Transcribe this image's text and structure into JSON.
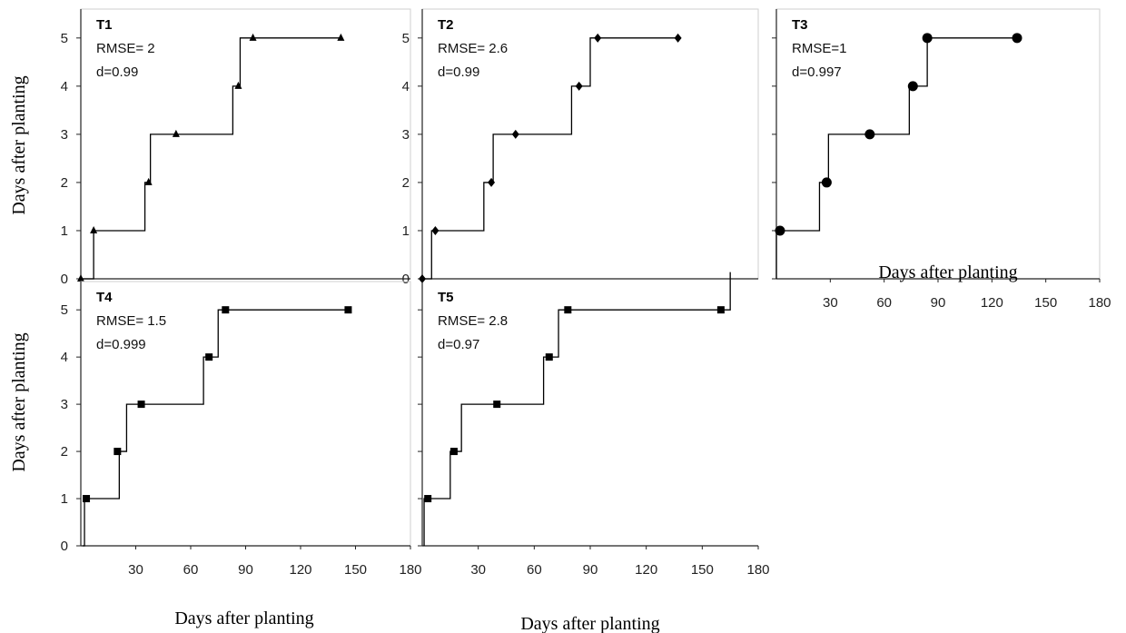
{
  "x_axis_title": "Days after planting",
  "y_axis_title": "Days after planting",
  "colors": {
    "line": "#000000",
    "axis": "#222222",
    "gridline": "#d0d0d0"
  },
  "chart_data": [
    {
      "type": "line",
      "title": "T1",
      "stat1": "RMSE= 2",
      "stat2": "d=0.99",
      "marker": "triangle",
      "x": [
        0,
        7,
        37,
        52,
        86,
        94,
        142
      ],
      "y": [
        0,
        1,
        2,
        3,
        4,
        5,
        5
      ],
      "step_x": [
        0,
        7,
        7,
        35,
        35,
        38,
        38,
        83,
        83,
        87,
        87,
        94,
        94,
        142
      ],
      "step_y": [
        0,
        0,
        1,
        1,
        2,
        2,
        3,
        3,
        4,
        4,
        5,
        5,
        5,
        5
      ],
      "ylim": [
        0,
        5.6
      ],
      "yticks": [
        "0",
        "1",
        "2",
        "3",
        "4",
        "5"
      ]
    },
    {
      "type": "line",
      "title": "T2",
      "stat1": "RMSE= 2.6",
      "stat2": "d=0.99",
      "marker": "diamond",
      "x": [
        0,
        7,
        37,
        50,
        84,
        94,
        137
      ],
      "y": [
        0,
        1,
        2,
        3,
        4,
        5,
        5
      ],
      "step_x": [
        0,
        5,
        5,
        33,
        33,
        38,
        38,
        80,
        80,
        90,
        90,
        137
      ],
      "step_y": [
        0,
        0,
        1,
        1,
        2,
        2,
        3,
        3,
        4,
        4,
        5,
        5
      ],
      "ylim": [
        0,
        5.6
      ],
      "yticks": [
        "0",
        "1",
        "2",
        "3",
        "4",
        "5"
      ]
    },
    {
      "type": "line",
      "title": "T3",
      "stat1": "RMSE=1",
      "stat2": "d=0.997",
      "marker": "circle",
      "x": [
        2,
        28,
        52,
        76,
        84,
        134
      ],
      "y": [
        1,
        2,
        3,
        4,
        5,
        5
      ],
      "step_x": [
        0,
        0,
        24,
        24,
        29,
        29,
        74,
        74,
        84,
        84,
        134
      ],
      "step_y": [
        0,
        1,
        1,
        2,
        2,
        3,
        3,
        4,
        4,
        5,
        5
      ],
      "xlim": [
        0,
        180
      ],
      "xticks": [
        "30",
        "60",
        "90",
        "120",
        "150",
        "180"
      ],
      "ylim": [
        0,
        5.6
      ],
      "yticks": []
    },
    {
      "type": "line",
      "title": "T4",
      "stat1": "RMSE= 1.5",
      "stat2": "d=0.999",
      "marker": "square",
      "x": [
        3,
        20,
        33,
        70,
        79,
        146
      ],
      "y": [
        1,
        2,
        3,
        4,
        5,
        5
      ],
      "step_x": [
        1,
        2,
        2,
        21,
        21,
        25,
        25,
        67,
        67,
        75,
        75,
        146
      ],
      "step_y": [
        0,
        0,
        1,
        1,
        2,
        2,
        3,
        3,
        4,
        4,
        5,
        5
      ],
      "xlim": [
        0,
        180
      ],
      "xticks": [
        "30",
        "60",
        "90",
        "120",
        "150",
        "180"
      ],
      "ylim": [
        0,
        5.6
      ],
      "yticks": [
        "0",
        "1",
        "2",
        "3",
        "4",
        "5"
      ]
    },
    {
      "type": "line",
      "title": "T5",
      "stat1": "RMSE= 2.8",
      "stat2": "d=0.97",
      "marker": "square",
      "x": [
        3,
        17,
        40,
        68,
        78,
        160
      ],
      "y": [
        1,
        2,
        3,
        4,
        5,
        5
      ],
      "step_x": [
        1,
        1,
        15,
        15,
        21,
        21,
        65,
        65,
        73,
        73,
        165,
        165
      ],
      "step_y": [
        0,
        1,
        1,
        2,
        2,
        3,
        3,
        4,
        4,
        5,
        5,
        5.8
      ],
      "xlim": [
        0,
        180
      ],
      "xticks": [
        "30",
        "60",
        "90",
        "120",
        "150",
        "180"
      ],
      "ylim": [
        0,
        5.6
      ],
      "yticks": []
    }
  ]
}
